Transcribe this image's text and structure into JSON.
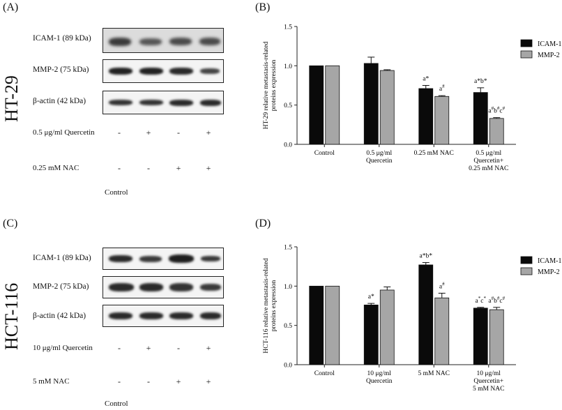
{
  "panels": {
    "A": "(A)",
    "B": "(B)",
    "C": "(C)",
    "D": "(D)"
  },
  "blot_A": {
    "cell_line": "HT-29",
    "rows": [
      {
        "label": "ICAM-1 (89 kDa)"
      },
      {
        "label": "MMP-2 (75 kDa)"
      },
      {
        "label": "β-actin (42 kDa)"
      }
    ],
    "treatments": [
      {
        "label": "0.5 μg/ml Quercetin",
        "signs": [
          "-",
          "+",
          "-",
          "+"
        ]
      },
      {
        "label": "0.25 mM NAC",
        "signs": [
          "-",
          "-",
          "+",
          "+"
        ]
      }
    ],
    "footer": "Control"
  },
  "blot_C": {
    "cell_line": "HCT-116",
    "rows": [
      {
        "label": "ICAM-1 (89 kDa)"
      },
      {
        "label": "MMP-2 (75 kDa)"
      },
      {
        "label": "β-actin (42 kDa)"
      }
    ],
    "treatments": [
      {
        "label": "10 μg/ml Quercetin",
        "signs": [
          "-",
          "+",
          "-",
          "+"
        ]
      },
      {
        "label": "5 mM NAC",
        "signs": [
          "-",
          "-",
          "+",
          "+"
        ]
      }
    ],
    "footer": "Control"
  },
  "chart_data": [
    {
      "type": "bar",
      "panel": "B",
      "ylabel_line1": "HT-29 relative metastasis-related",
      "ylabel_line2": "proteins expression",
      "ylim": [
        0,
        1.5
      ],
      "yticks": [
        "0.0",
        "0.5",
        "1.0",
        "1.5"
      ],
      "categories": [
        [
          "Control"
        ],
        [
          "0.5 μg/ml",
          "Quercetin"
        ],
        [
          "0.25 mM NAC"
        ],
        [
          "0.5 μg/ml",
          "Quercetin+",
          "0.25 mM NAC"
        ]
      ],
      "series": [
        {
          "name": "ICAM-1",
          "color": "#0a0a0a",
          "values": [
            1.0,
            1.03,
            0.71,
            0.66
          ],
          "errors": [
            0.0,
            0.08,
            0.04,
            0.06
          ],
          "annotations": [
            [],
            [],
            [
              {
                "t": "a*"
              }
            ],
            [
              {
                "t": "a*b*"
              }
            ]
          ]
        },
        {
          "name": "MMP-2",
          "color": "#a6a6a6",
          "values": [
            1.0,
            0.94,
            0.61,
            0.33
          ],
          "errors": [
            0.0,
            0.01,
            0.01,
            0.01
          ],
          "annotations": [
            [],
            [],
            [
              {
                "t": "a"
              },
              {
                "t": "#",
                "sup": true
              }
            ],
            [
              {
                "t": "a"
              },
              {
                "t": "#",
                "sup": true
              },
              {
                "t": "b"
              },
              {
                "t": "#",
                "sup": true
              },
              {
                "t": "c"
              },
              {
                "t": "#",
                "sup": true
              }
            ]
          ]
        }
      ],
      "legend": "top-right"
    },
    {
      "type": "bar",
      "panel": "D",
      "ylabel_line1": "HCT-116 relative metastasis-related",
      "ylabel_line2": "proteins expression",
      "ylim": [
        0,
        1.5
      ],
      "yticks": [
        "0.0",
        "0.5",
        "1.0",
        "1.5"
      ],
      "categories": [
        [
          "Control"
        ],
        [
          "10 μg/ml",
          "Quercetin"
        ],
        [
          "5 mM NAC"
        ],
        [
          "10 μg/ml",
          "Quercetin+",
          "5 mM NAC"
        ]
      ],
      "series": [
        {
          "name": "ICAM-1",
          "color": "#0a0a0a",
          "values": [
            1.0,
            0.76,
            1.27,
            0.72
          ],
          "errors": [
            0.0,
            0.02,
            0.03,
            0.01
          ],
          "annotations": [
            [],
            [
              {
                "t": "a*"
              }
            ],
            [
              {
                "t": "a*b*"
              }
            ],
            [
              {
                "t": "a"
              },
              {
                "t": "*",
                "sup": true
              },
              {
                "t": "c"
              },
              {
                "t": "*",
                "sup": true
              }
            ]
          ]
        },
        {
          "name": "MMP-2",
          "color": "#a6a6a6",
          "values": [
            1.0,
            0.95,
            0.85,
            0.7
          ],
          "errors": [
            0.0,
            0.04,
            0.06,
            0.03
          ],
          "annotations": [
            [],
            [],
            [
              {
                "t": "a"
              },
              {
                "t": "#",
                "sup": true
              }
            ],
            [
              {
                "t": "a"
              },
              {
                "t": "#",
                "sup": true
              },
              {
                "t": "b"
              },
              {
                "t": "#",
                "sup": true
              },
              {
                "t": "c"
              },
              {
                "t": "#",
                "sup": true
              }
            ]
          ]
        }
      ],
      "legend": "top-right"
    }
  ]
}
